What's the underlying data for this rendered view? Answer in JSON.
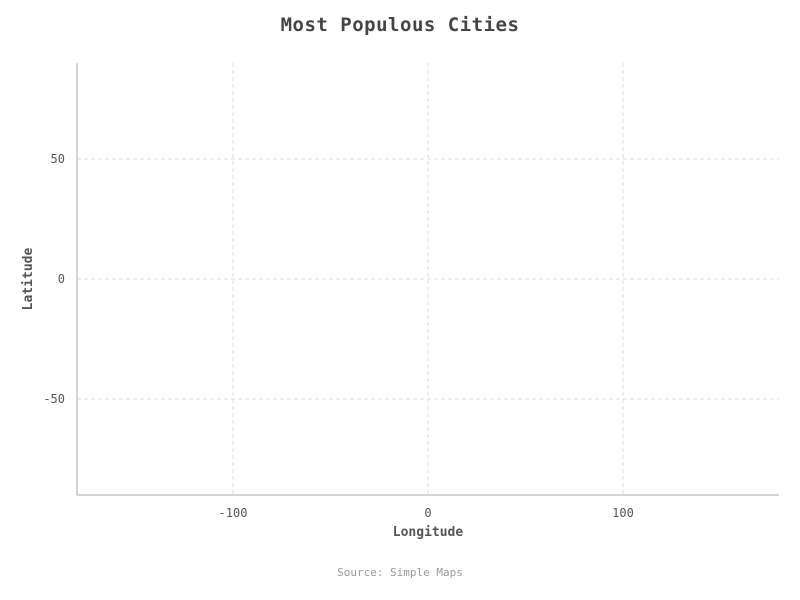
{
  "chart_data": {
    "type": "scatter",
    "title": "Most Populous Cities",
    "xlabel": "Longitude",
    "ylabel": "Latitude",
    "source": "Source: Simple Maps",
    "xlim": [
      -180,
      180
    ],
    "ylim": [
      -90,
      90
    ],
    "x_ticks": [
      -100,
      0,
      100
    ],
    "y_ticks": [
      50,
      0,
      -50
    ],
    "grid": true,
    "points": []
  }
}
